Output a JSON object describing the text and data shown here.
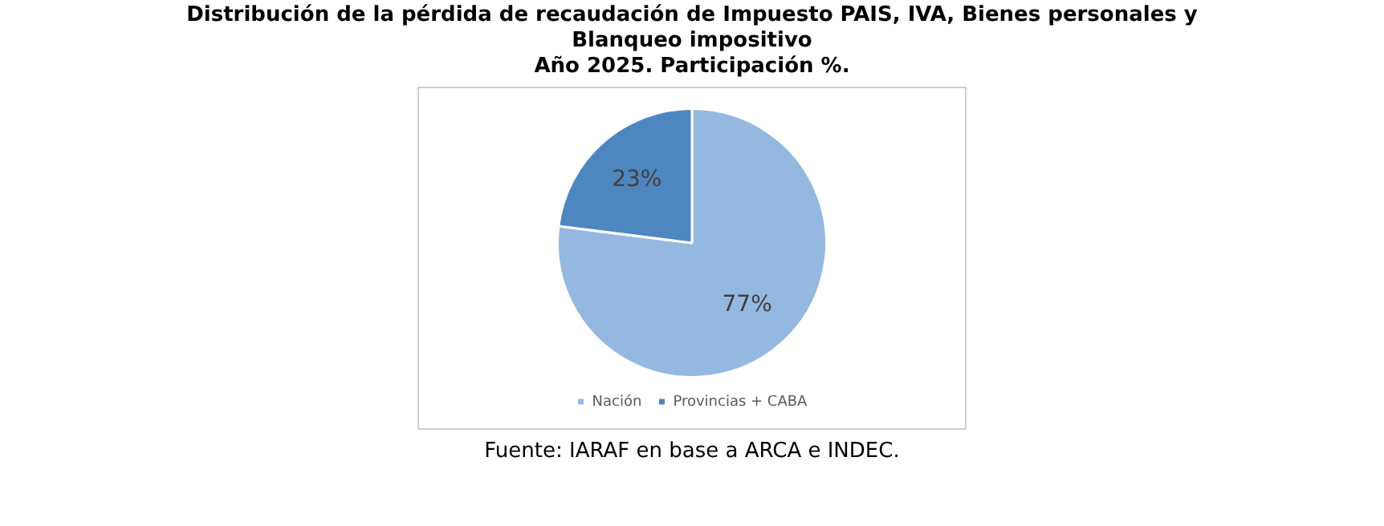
{
  "chart_data": {
    "type": "pie",
    "title": "Distribución de la pérdida de recaudación de Impuesto PAIS, IVA, Bienes personales y Blanqueo impositivo",
    "subtitle": "Año 2025. Participación %.",
    "categories": [
      "Nación",
      "Provincias + CABA"
    ],
    "values": [
      77,
      23
    ],
    "colors": [
      "#95b8e0",
      "#4e86c0"
    ],
    "value_labels": [
      "77%",
      "23%"
    ],
    "legend": "bottom",
    "annotations": [
      "Fuente: IARAF en base a ARCA e INDEC."
    ]
  }
}
